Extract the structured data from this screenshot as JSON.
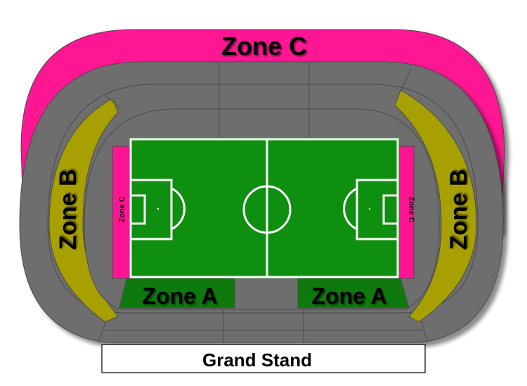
{
  "labels": {
    "zone_c_top": "Zone C",
    "zone_b_left": "Zone B",
    "zone_b_right": "Zone B",
    "zone_c_left": "Zone C",
    "zone_c_right": "Zone C",
    "zone_a_left": "Zone A",
    "zone_a_right": "Zone A",
    "grand_stand": "Grand Stand"
  },
  "colors": {
    "zone_a": "#0e7a0e",
    "zone_b": "#a8a000",
    "zone_c": "#ff1493",
    "seating_grey": "#6e6e6e",
    "pitch": "#0f8f0f",
    "pitch_lines": "#ffffff"
  }
}
